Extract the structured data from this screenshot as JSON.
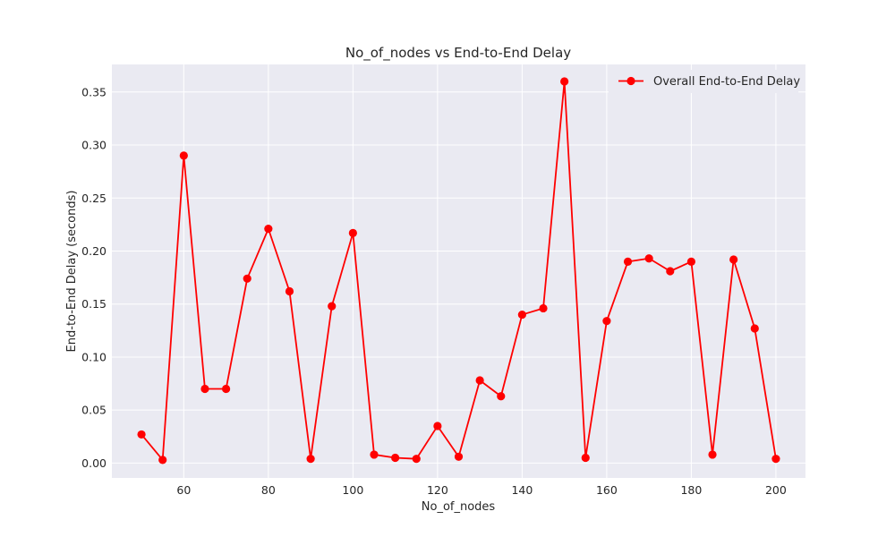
{
  "chart_data": {
    "type": "line",
    "title": "No_of_nodes vs End-to-End Delay",
    "xlabel": "No_of_nodes",
    "ylabel": "End-to-End Delay (seconds)",
    "xlim": [
      43,
      207
    ],
    "ylim": [
      -0.014,
      0.376
    ],
    "x_ticks": [
      60,
      80,
      100,
      120,
      140,
      160,
      180,
      200
    ],
    "y_ticks": [
      0.0,
      0.05,
      0.1,
      0.15,
      0.2,
      0.25,
      0.3,
      0.35
    ],
    "y_tick_labels": [
      "0.00",
      "0.05",
      "0.10",
      "0.15",
      "0.20",
      "0.25",
      "0.30",
      "0.35"
    ],
    "grid": true,
    "legend_position": "top-right",
    "series": [
      {
        "name": "Overall End-to-End Delay",
        "color": "#ff0000",
        "marker": "circle",
        "x": [
          50,
          55,
          60,
          65,
          70,
          75,
          80,
          85,
          90,
          95,
          100,
          105,
          110,
          115,
          120,
          125,
          130,
          135,
          140,
          145,
          150,
          155,
          160,
          165,
          170,
          175,
          180,
          185,
          190,
          195,
          200
        ],
        "y": [
          0.027,
          0.003,
          0.29,
          0.07,
          0.07,
          0.174,
          0.221,
          0.162,
          0.004,
          0.148,
          0.217,
          0.008,
          0.005,
          0.004,
          0.035,
          0.006,
          0.078,
          0.063,
          0.14,
          0.146,
          0.36,
          0.005,
          0.134,
          0.19,
          0.193,
          0.181,
          0.19,
          0.008,
          0.192,
          0.127,
          0.004
        ]
      }
    ]
  }
}
